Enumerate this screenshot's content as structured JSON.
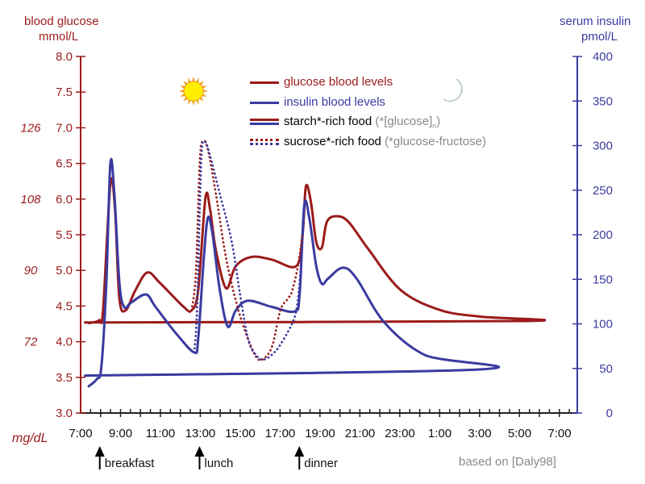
{
  "chart_data": {
    "type": "line",
    "left_axis": {
      "title": "blood glucose",
      "unit": "mmol/L",
      "ylim": [
        3.0,
        8.0
      ],
      "ticks": [
        "3.0",
        "3.5",
        "4.0",
        "4.5",
        "5.0",
        "5.5",
        "6.0",
        "6.5",
        "7.0",
        "7.5",
        "8.0"
      ],
      "color": "#9b1b1b"
    },
    "right_axis": {
      "title": "serum insulin",
      "unit": "pmol/L",
      "ylim": [
        0,
        400
      ],
      "ticks": [
        "0",
        "50",
        "100",
        "150",
        "200",
        "250",
        "300",
        "350",
        "400"
      ],
      "color": "#3a3aa0"
    },
    "secondary_left_axis": {
      "unit": "mg/dL",
      "ticks": [
        {
          "label": "72",
          "mmol": 4.0
        },
        {
          "label": "90",
          "mmol": 5.0
        },
        {
          "label": "108",
          "mmol": 6.0
        },
        {
          "label": "126",
          "mmol": 7.0
        }
      ]
    },
    "x_ticks": [
      "7:00",
      "9:00",
      "11:00",
      "13:00",
      "15:00",
      "17:00",
      "19:00",
      "21:00",
      "23:00",
      "1:00",
      "3:00",
      "5:00",
      "7:00"
    ],
    "series": [
      {
        "name": "glucose blood levels",
        "food": "starch*-rich food",
        "axis": "left",
        "color": "#9b1b1b",
        "style": "solid",
        "x": [
          "7:22",
          "7:53",
          "8:05",
          "8:27",
          "8:41",
          "8:54",
          "9:13",
          "9:42",
          "10:18",
          "10:55",
          "12:07",
          "12:31",
          "12:51",
          "13:13",
          "13:27",
          "13:44",
          "14:15",
          "14:44",
          "15:33",
          "16:33",
          "17:46",
          "18:05",
          "18:15",
          "18:30",
          "18:46",
          "19:03",
          "19:18",
          "19:47",
          "20:23",
          "21:24",
          "23:01",
          "1:01",
          "3:02",
          "5:03",
          "7:11"
        ],
        "y": [
          4.26,
          4.3,
          4.44,
          6.21,
          5.85,
          4.61,
          4.44,
          4.72,
          4.97,
          4.83,
          4.49,
          4.44,
          4.72,
          6.02,
          5.85,
          5.29,
          4.75,
          5.06,
          5.19,
          5.15,
          5.06,
          5.51,
          6.18,
          5.96,
          5.4,
          5.32,
          5.68,
          5.76,
          5.68,
          5.29,
          4.72,
          4.44,
          4.35,
          4.29,
          4.27
        ]
      },
      {
        "name": "insulin blood levels",
        "food": "starch*-rich food",
        "axis": "right",
        "color": "#3a3aa0",
        "style": "solid",
        "x": [
          "7:22",
          "7:46",
          "8:00",
          "8:15",
          "8:27",
          "8:39",
          "8:54",
          "9:08",
          "9:30",
          "10:14",
          "10:43",
          "11:43",
          "12:39",
          "12:51",
          "13:08",
          "13:20",
          "13:34",
          "13:56",
          "14:20",
          "14:44",
          "15:21",
          "16:33",
          "17:41",
          "17:56",
          "18:10",
          "18:25",
          "18:46",
          "19:03",
          "19:22",
          "20:06",
          "20:47",
          "22:12",
          "0:13",
          "3:02",
          "7:11"
        ],
        "y": [
          30,
          38,
          52,
          147,
          280,
          246,
          147,
          119,
          124,
          133,
          119,
          90,
          68,
          83,
          174,
          219,
          201,
          138,
          97,
          115,
          126,
          119,
          114,
          133,
          233,
          219,
          165,
          145,
          151,
          163,
          151,
          101,
          65,
          49,
          42
        ]
      },
      {
        "food": "sucrose*-rich food",
        "axis": "left",
        "color": "#9b1b1b",
        "style": "dotted",
        "x": [
          "12:31",
          "12:44",
          "12:56",
          "13:05",
          "13:20",
          "13:44",
          "14:15",
          "14:49",
          "15:21",
          "15:45",
          "16:04",
          "16:33",
          "16:58",
          "17:22",
          "17:34",
          "17:51",
          "18:05"
        ],
        "y": [
          4.44,
          4.95,
          6.53,
          6.81,
          6.7,
          6.08,
          5.17,
          4.49,
          4.04,
          3.79,
          3.75,
          3.93,
          4.44,
          4.61,
          4.72,
          5.06,
          5.51
        ]
      },
      {
        "food": "sucrose*-rich food",
        "axis": "right",
        "color": "#3a3aa0",
        "style": "dotted",
        "x": [
          "12:39",
          "12:48",
          "13:00",
          "13:10",
          "13:25",
          "13:56",
          "14:32",
          "14:57",
          "15:21",
          "15:45",
          "16:09",
          "16:45",
          "17:22",
          "17:46",
          "18:00",
          "18:10"
        ],
        "y": [
          68,
          119,
          282,
          304,
          291,
          246,
          192,
          133,
          83,
          65,
          60,
          70,
          92,
          115,
          165,
          233
        ]
      }
    ],
    "legend": {
      "placement": "top-center",
      "glucose": "glucose blood levels",
      "insulin": "insulin blood levels",
      "starch": "starch*-rich food",
      "starch_note": "(*[glucose]",
      "starch_sub": "n",
      "starch_close": ")",
      "sucrose": "sucrose*-rich food",
      "sucrose_note": "(*glucose-fructose)"
    },
    "annotations": {
      "meals": [
        {
          "label": "breakfast",
          "time": "8:00"
        },
        {
          "label": "lunch",
          "time": "13:00"
        },
        {
          "label": "dinner",
          "time": "18:00"
        }
      ],
      "source": "based on [Daly98]",
      "icons": [
        "sun-icon",
        "moon-icon"
      ]
    }
  }
}
